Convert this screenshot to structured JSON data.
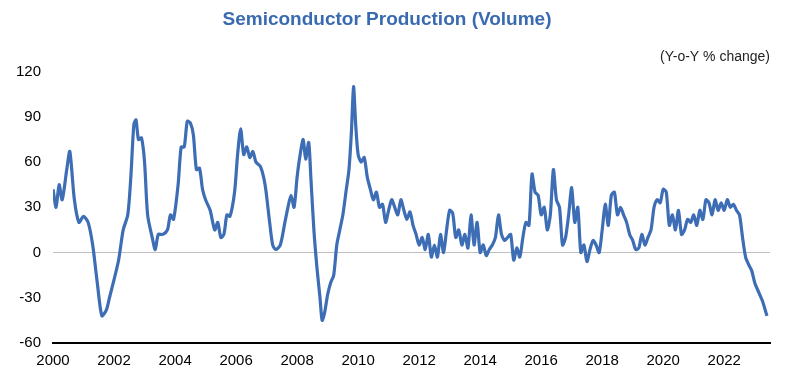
{
  "chart_data": {
    "type": "line",
    "title": "Semiconductor Production (Volume)",
    "subtitle": "(Y-o-Y % change)",
    "color": "#3d6db5",
    "grid": false,
    "x": [
      2000.0,
      2000.1,
      2000.2,
      2000.3,
      2000.45,
      2000.55,
      2000.7,
      2000.85,
      2001.0,
      2001.15,
      2001.3,
      2001.45,
      2001.6,
      2001.75,
      2001.85,
      2002.0,
      2002.15,
      2002.3,
      2002.45,
      2002.55,
      2002.65,
      2002.72,
      2002.8,
      2002.9,
      2003.0,
      2003.1,
      2003.25,
      2003.35,
      2003.45,
      2003.6,
      2003.75,
      2003.85,
      2003.95,
      2004.1,
      2004.2,
      2004.3,
      2004.4,
      2004.5,
      2004.6,
      2004.7,
      2004.8,
      2004.9,
      2005.0,
      2005.15,
      2005.3,
      2005.4,
      2005.5,
      2005.6,
      2005.7,
      2005.8,
      2005.95,
      2006.05,
      2006.15,
      2006.25,
      2006.35,
      2006.45,
      2006.55,
      2006.65,
      2006.8,
      2006.95,
      2007.1,
      2007.2,
      2007.3,
      2007.45,
      2007.6,
      2007.7,
      2007.8,
      2007.9,
      2008.0,
      2008.1,
      2008.2,
      2008.28,
      2008.38,
      2008.45,
      2008.55,
      2008.65,
      2008.75,
      2008.82,
      2008.9,
      2009.0,
      2009.1,
      2009.2,
      2009.3,
      2009.4,
      2009.5,
      2009.6,
      2009.7,
      2009.78,
      2009.85,
      2009.92,
      2010.0,
      2010.1,
      2010.2,
      2010.3,
      2010.4,
      2010.5,
      2010.6,
      2010.7,
      2010.8,
      2010.9,
      2011.0,
      2011.1,
      2011.2,
      2011.3,
      2011.4,
      2011.5,
      2011.6,
      2011.7,
      2011.8,
      2011.9,
      2012.0,
      2012.1,
      2012.2,
      2012.3,
      2012.4,
      2012.5,
      2012.6,
      2012.7,
      2012.8,
      2012.9,
      2013.0,
      2013.1,
      2013.2,
      2013.3,
      2013.4,
      2013.5,
      2013.6,
      2013.7,
      2013.8,
      2013.9,
      2014.0,
      2014.1,
      2014.2,
      2014.3,
      2014.4,
      2014.5,
      2014.6,
      2014.7,
      2014.8,
      2014.9,
      2015.0,
      2015.1,
      2015.2,
      2015.3,
      2015.4,
      2015.5,
      2015.6,
      2015.7,
      2015.8,
      2015.9,
      2016.0,
      2016.1,
      2016.2,
      2016.3,
      2016.4,
      2016.5,
      2016.6,
      2016.7,
      2016.8,
      2016.9,
      2017.0,
      2017.1,
      2017.2,
      2017.3,
      2017.4,
      2017.5,
      2017.6,
      2017.7,
      2017.8,
      2017.9,
      2018.0,
      2018.1,
      2018.2,
      2018.3,
      2018.4,
      2018.5,
      2018.6,
      2018.7,
      2018.8,
      2018.9,
      2019.0,
      2019.1,
      2019.2,
      2019.3,
      2019.4,
      2019.5,
      2019.6,
      2019.7,
      2019.8,
      2019.9,
      2020.0,
      2020.1,
      2020.2,
      2020.3,
      2020.4,
      2020.5,
      2020.6,
      2020.7,
      2020.8,
      2020.9,
      2021.0,
      2021.1,
      2021.2,
      2021.3,
      2021.4,
      2021.5,
      2021.6,
      2021.7,
      2021.8,
      2021.9,
      2022.0,
      2022.1,
      2022.2,
      2022.3,
      2022.4,
      2022.5,
      2022.6,
      2022.7,
      2022.8,
      2022.9,
      2023.0,
      2023.1,
      2023.25,
      2023.4
    ],
    "values": [
      42,
      30,
      45,
      35,
      55,
      67,
      35,
      20,
      24,
      20,
      5,
      -20,
      -42,
      -38,
      -30,
      -18,
      -5,
      15,
      25,
      50,
      85,
      88,
      75,
      76,
      60,
      25,
      10,
      2,
      12,
      12,
      15,
      25,
      22,
      45,
      70,
      70,
      87,
      86,
      78,
      55,
      56,
      42,
      35,
      28,
      15,
      20,
      10,
      12,
      25,
      24,
      40,
      65,
      82,
      65,
      70,
      63,
      67,
      60,
      57,
      45,
      20,
      5,
      2,
      5,
      20,
      30,
      38,
      30,
      50,
      65,
      75,
      62,
      73,
      50,
      15,
      -10,
      -30,
      -45,
      -40,
      -28,
      -20,
      -15,
      5,
      15,
      25,
      40,
      55,
      80,
      110,
      85,
      65,
      60,
      63,
      50,
      42,
      35,
      40,
      30,
      32,
      20,
      28,
      35,
      30,
      25,
      35,
      28,
      22,
      27,
      18,
      12,
      5,
      10,
      2,
      12,
      -3,
      5,
      -3,
      12,
      0,
      15,
      28,
      26,
      10,
      15,
      5,
      12,
      3,
      25,
      5,
      20,
      0,
      5,
      -2,
      2,
      5,
      10,
      25,
      12,
      8,
      10,
      12,
      -5,
      3,
      -3,
      10,
      20,
      18,
      52,
      40,
      38,
      25,
      30,
      15,
      25,
      55,
      35,
      30,
      5,
      10,
      25,
      43,
      20,
      30,
      0,
      5,
      -6,
      2,
      8,
      5,
      0,
      15,
      32,
      18,
      38,
      40,
      25,
      30,
      25,
      20,
      12,
      8,
      2,
      3,
      12,
      5,
      10,
      15,
      30,
      35,
      33,
      42,
      40,
      18,
      25,
      15,
      28,
      12,
      15,
      22,
      20,
      25,
      18,
      28,
      22,
      35,
      33,
      25,
      35,
      28,
      33,
      28,
      35,
      30,
      32,
      28,
      25,
      10,
      -3,
      -8,
      -12,
      -20,
      -25,
      -32,
      -42
    ],
    "xlim": [
      2000,
      2023.5
    ],
    "xticks": [
      2000,
      2002,
      2004,
      2006,
      2008,
      2010,
      2012,
      2014,
      2016,
      2018,
      2020,
      2022
    ],
    "ylim": [
      -60,
      120
    ],
    "yticks": [
      -60,
      -30,
      0,
      30,
      60,
      90,
      120
    ]
  }
}
